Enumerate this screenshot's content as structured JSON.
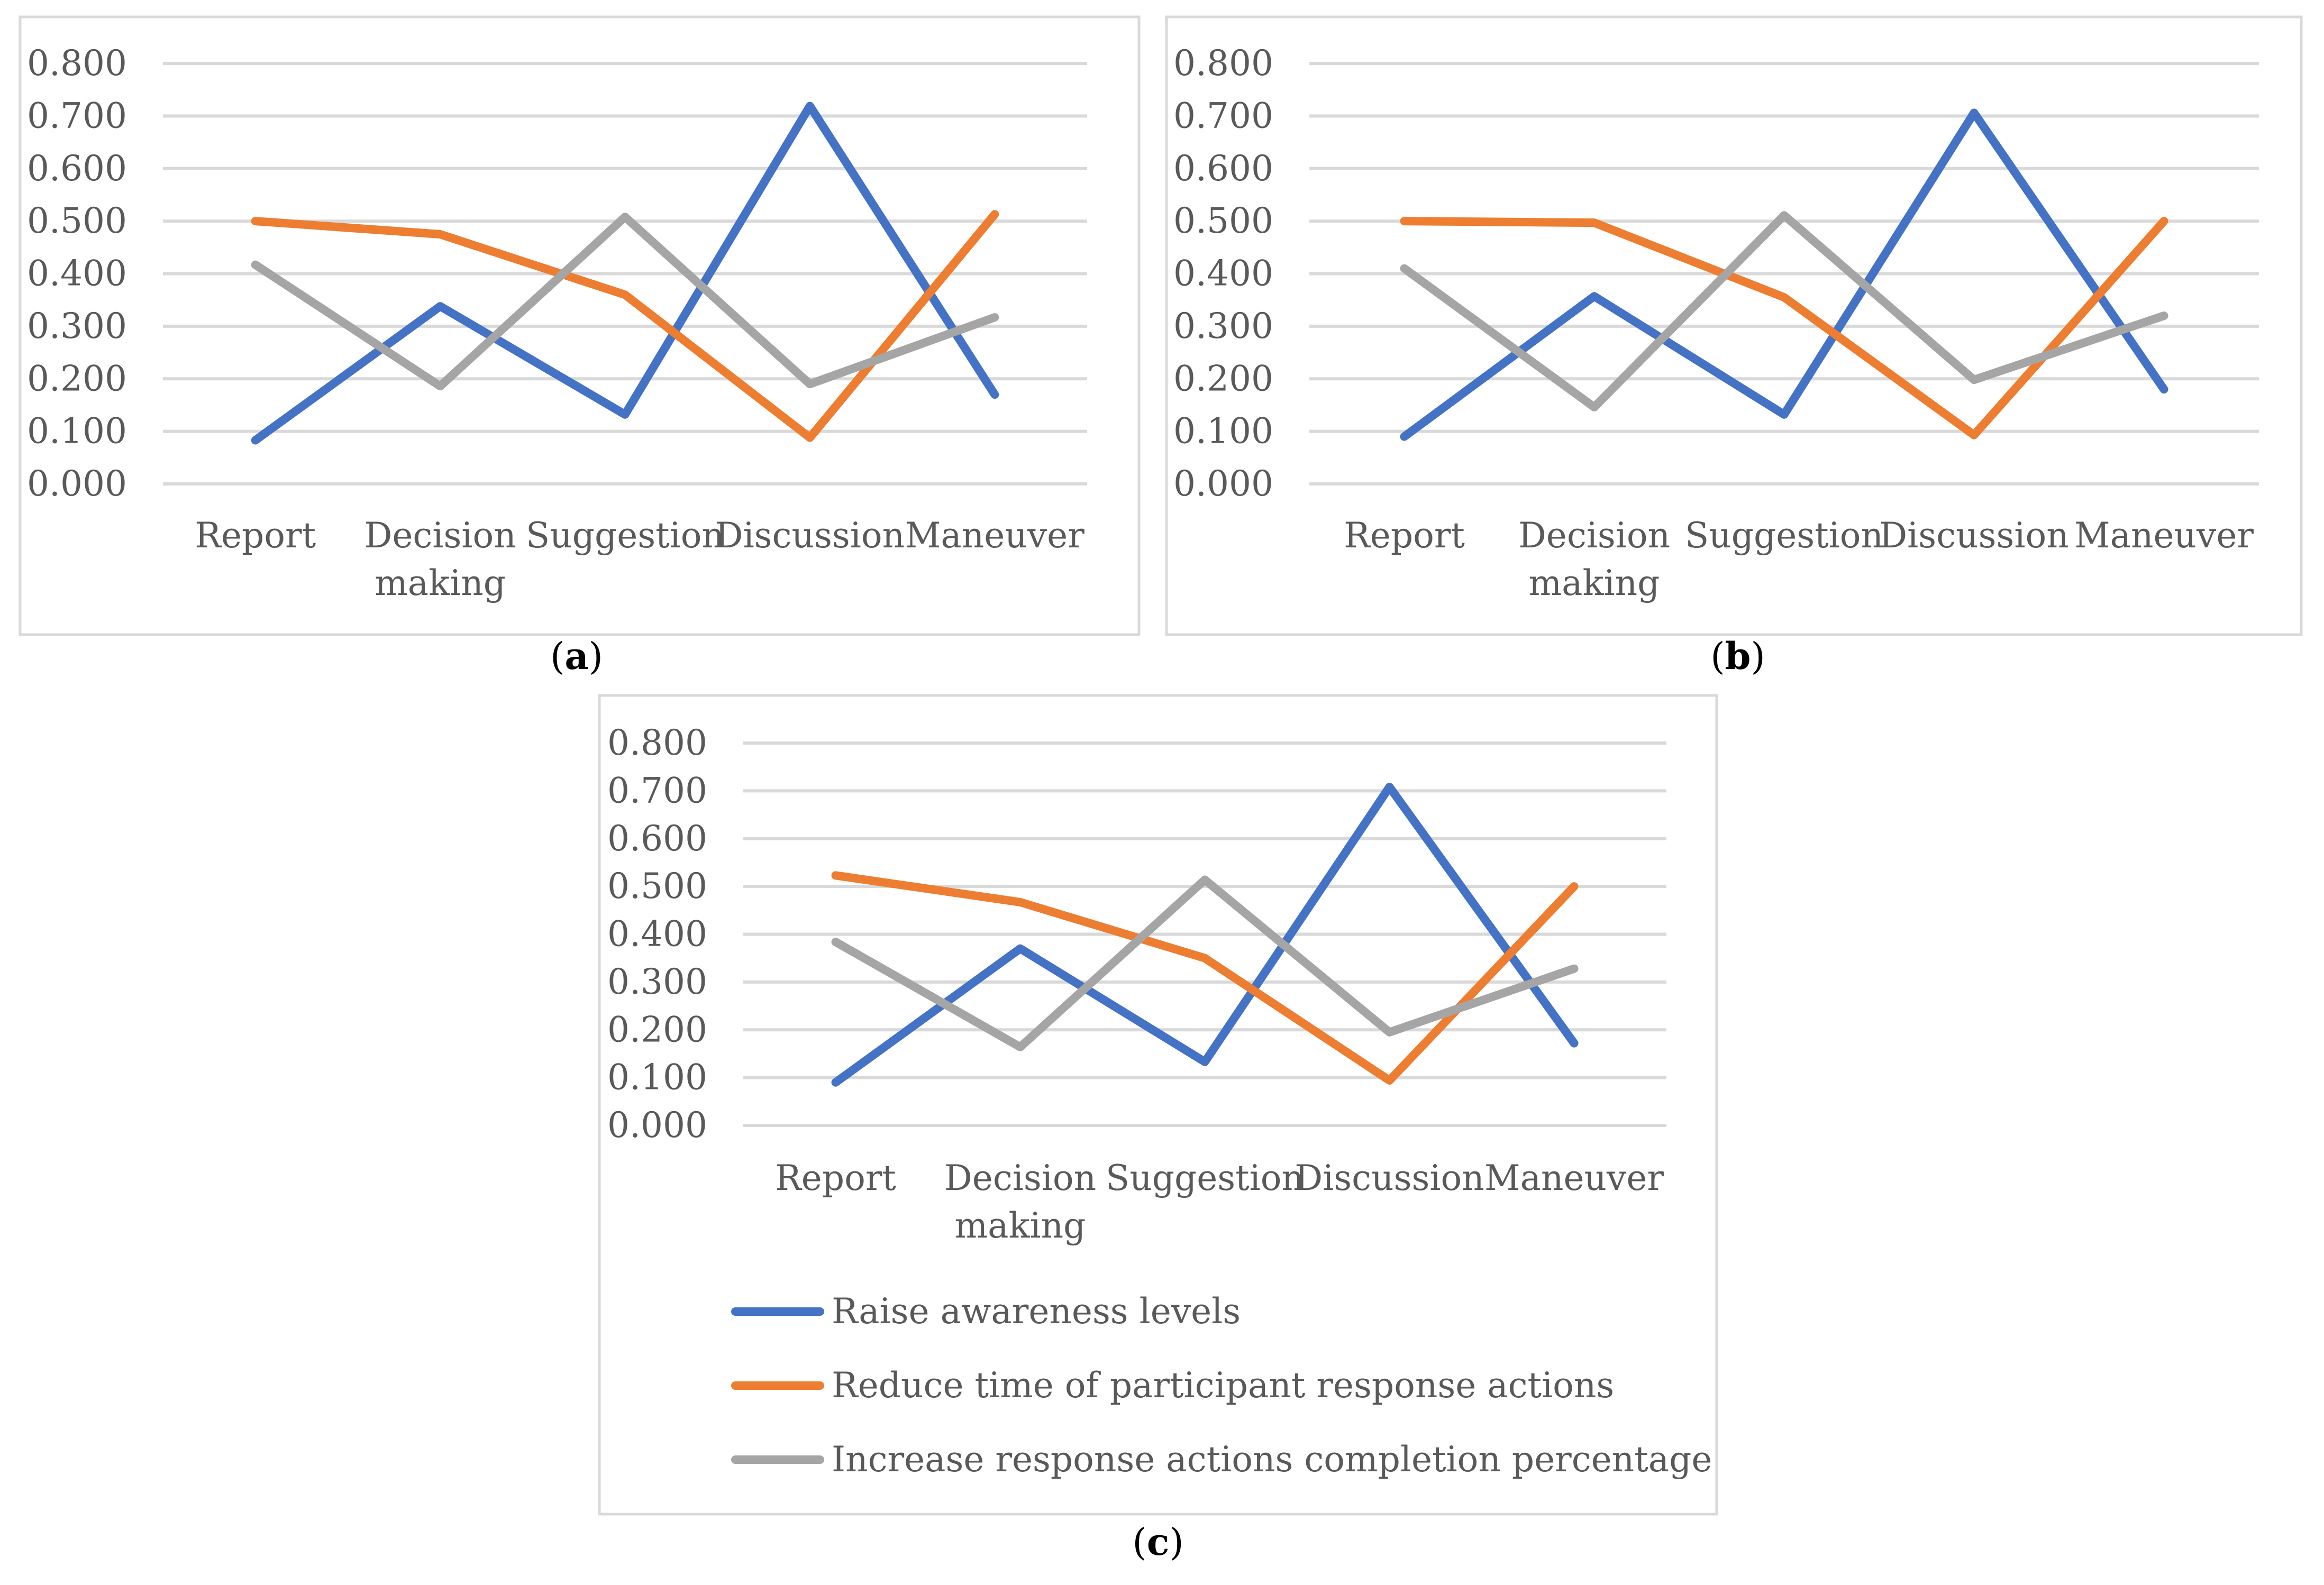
{
  "chart_data": [
    {
      "type": "line",
      "panel_label": "a",
      "categories": [
        "Report",
        "Decision making",
        "Suggestion",
        "Discussion",
        "Maneuver"
      ],
      "ylim": [
        0,
        0.8
      ],
      "yticks": [
        "0.000",
        "0.100",
        "0.200",
        "0.300",
        "0.400",
        "0.500",
        "0.600",
        "0.700",
        "0.800"
      ],
      "grid": true,
      "series": [
        {
          "name": "Raise awareness levels",
          "color": "#4472c4",
          "values": [
            0.083,
            0.338,
            0.132,
            0.719,
            0.17
          ]
        },
        {
          "name": "Reduce time of participant response actions",
          "color": "#ed7d31",
          "values": [
            0.5,
            0.475,
            0.36,
            0.088,
            0.513
          ]
        },
        {
          "name": "Increase response actions completion percentage",
          "color": "#a5a5a5",
          "values": [
            0.417,
            0.186,
            0.508,
            0.19,
            0.317
          ]
        }
      ]
    },
    {
      "type": "line",
      "panel_label": "b",
      "categories": [
        "Report",
        "Decision making",
        "Suggestion",
        "Discussion",
        "Maneuver"
      ],
      "ylim": [
        0,
        0.8
      ],
      "yticks": [
        "0.000",
        "0.100",
        "0.200",
        "0.300",
        "0.400",
        "0.500",
        "0.600",
        "0.700",
        "0.800"
      ],
      "grid": true,
      "series": [
        {
          "name": "Raise awareness levels",
          "color": "#4472c4",
          "values": [
            0.09,
            0.357,
            0.132,
            0.706,
            0.18
          ]
        },
        {
          "name": "Reduce time of participant response actions",
          "color": "#ed7d31",
          "values": [
            0.5,
            0.497,
            0.355,
            0.093,
            0.5
          ]
        },
        {
          "name": "Increase response actions completion percentage",
          "color": "#a5a5a5",
          "values": [
            0.41,
            0.146,
            0.511,
            0.198,
            0.32
          ]
        }
      ]
    },
    {
      "type": "line",
      "panel_label": "c",
      "categories": [
        "Report",
        "Decision making",
        "Suggestion",
        "Discussion",
        "Maneuver"
      ],
      "ylim": [
        0,
        0.8
      ],
      "yticks": [
        "0.000",
        "0.100",
        "0.200",
        "0.300",
        "0.400",
        "0.500",
        "0.600",
        "0.700",
        "0.800"
      ],
      "grid": true,
      "legend_position": "bottom",
      "series": [
        {
          "name": "Raise awareness levels",
          "color": "#4472c4",
          "values": [
            0.09,
            0.37,
            0.133,
            0.708,
            0.172
          ]
        },
        {
          "name": "Reduce time of participant response actions",
          "color": "#ed7d31",
          "values": [
            0.523,
            0.467,
            0.35,
            0.094,
            0.5
          ]
        },
        {
          "name": "Increase response actions completion percentage",
          "color": "#a5a5a5",
          "values": [
            0.384,
            0.164,
            0.514,
            0.195,
            0.328
          ]
        }
      ]
    }
  ]
}
